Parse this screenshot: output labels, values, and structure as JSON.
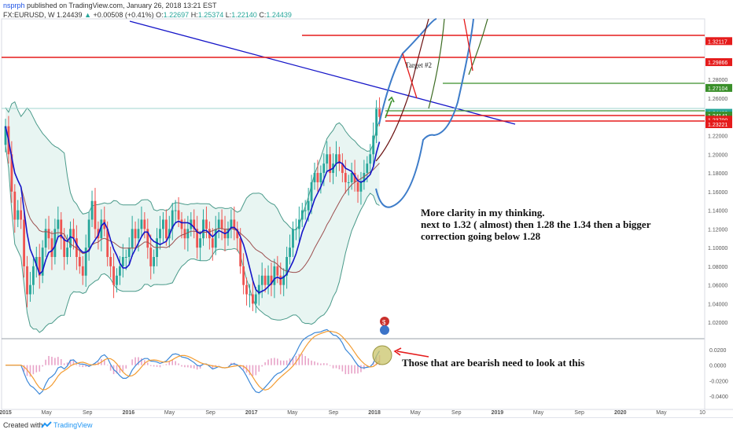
{
  "header": {
    "user": "nsprph",
    "published": "published on TradingView.com, January 26, 2018 13:21 EST",
    "symbol": "FX:EURUSD, W",
    "last": "1.24439",
    "change": "+0.00508 (+0.41%)",
    "open_label": "O:",
    "open": "1.22697",
    "high_label": "H:",
    "high": "1.25374",
    "low_label": "L:",
    "low": "1.22140",
    "close_label": "C:",
    "close": "1.24439",
    "up_color": "#26a69a"
  },
  "footer": {
    "created": "Created with",
    "brand": "TradingView"
  },
  "chart_data": {
    "type": "candlestick",
    "x_ticks": [
      "2015",
      "May",
      "Sep",
      "2016",
      "May",
      "Sep",
      "2017",
      "May",
      "Sep",
      "2018",
      "May",
      "Sep",
      "2019",
      "May",
      "Sep",
      "2020",
      "May",
      "10"
    ],
    "x_range": [
      "2015-01",
      "2020-11"
    ],
    "y_ticks": [
      "1.32000",
      "1.30000",
      "1.28000",
      "1.26000",
      "1.24000",
      "1.22000",
      "1.20000",
      "1.18000",
      "1.16000",
      "1.14000",
      "1.12000",
      "1.10000",
      "1.08000",
      "1.06000",
      "1.04000",
      "1.02000"
    ],
    "y_range": [
      1.005,
      1.345
    ],
    "colors": {
      "up": "#26a69a",
      "down": "#ef5350",
      "ma_fast": "#1515c8",
      "ma_slow": "#9c4f4f",
      "band": "#4a9a8a",
      "trend": "#1515c8",
      "red_level": "#e51b1b",
      "green_level": "#3a8f2a",
      "projection": "#3d7cc9"
    },
    "price_labels": [
      {
        "value": 1.32117,
        "label": "1.32117",
        "color": "#e51b1b"
      },
      {
        "value": 1.29866,
        "label": "1.29866",
        "color": "#e51b1b"
      },
      {
        "value": 1.27104,
        "label": "1.27104",
        "color": "#3a8f2a"
      },
      {
        "value": 1.24439,
        "label": "1.24439",
        "color": "#26a69a"
      },
      {
        "value": 1.24141,
        "label": "1.24141",
        "color": "#3a8f2a"
      },
      {
        "value": 1.237,
        "label": "1.23700",
        "color": "#e51b1b"
      },
      {
        "value": 1.23221,
        "label": "1.23221",
        "color": "#e51b1b"
      }
    ],
    "annotations": {
      "target": "Target #2",
      "note_line1": "More clarity in my thinking.",
      "note_line2": "next to 1.32 ( almost) then 1.28 the 1.34 then a bigger",
      "note_line3": "correction going below 1.28",
      "osc_note": "Those that are bearish need to look at this"
    },
    "closes": [
      1.23,
      1.2,
      1.16,
      1.13,
      1.14,
      1.13,
      1.08,
      1.05,
      1.06,
      1.08,
      1.09,
      1.07,
      1.1,
      1.12,
      1.11,
      1.09,
      1.12,
      1.13,
      1.11,
      1.09,
      1.1,
      1.12,
      1.11,
      1.09,
      1.08,
      1.07,
      1.1,
      1.13,
      1.15,
      1.12,
      1.11,
      1.13,
      1.12,
      1.09,
      1.08,
      1.06,
      1.07,
      1.08,
      1.09,
      1.09,
      1.1,
      1.12,
      1.11,
      1.12,
      1.13,
      1.12,
      1.1,
      1.08,
      1.09,
      1.11,
      1.12,
      1.13,
      1.11,
      1.12,
      1.14,
      1.14,
      1.13,
      1.12,
      1.11,
      1.12,
      1.13,
      1.12,
      1.1,
      1.11,
      1.13,
      1.12,
      1.11,
      1.1,
      1.12,
      1.13,
      1.12,
      1.11,
      1.12,
      1.13,
      1.12,
      1.11,
      1.08,
      1.06,
      1.05,
      1.05,
      1.04,
      1.05,
      1.06,
      1.07,
      1.06,
      1.07,
      1.06,
      1.08,
      1.07,
      1.06,
      1.07,
      1.09,
      1.1,
      1.12,
      1.12,
      1.13,
      1.14,
      1.14,
      1.15,
      1.17,
      1.18,
      1.17,
      1.18,
      1.19,
      1.2,
      1.18,
      1.19,
      1.2,
      1.19,
      1.18,
      1.17,
      1.17,
      1.18,
      1.17,
      1.16,
      1.17,
      1.18,
      1.19,
      1.2,
      1.22,
      1.25,
      1.24
    ],
    "oscillator": {
      "y_ticks": [
        "0.0200",
        "0.0000",
        "-0.0200",
        "-0.0400"
      ],
      "y_range": [
        -0.055,
        0.032
      ]
    }
  }
}
